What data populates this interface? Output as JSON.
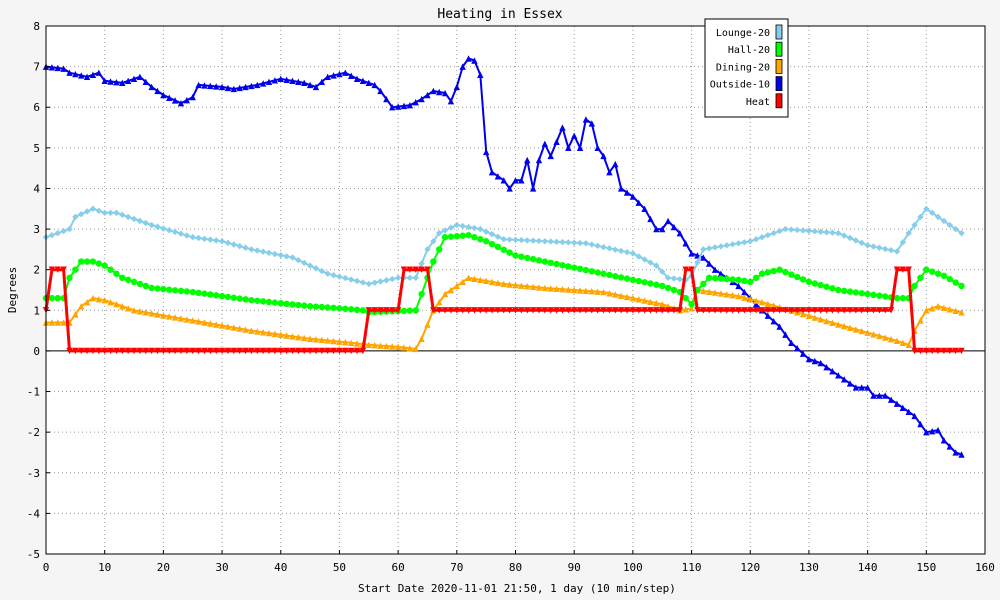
{
  "chart_data": {
    "type": "line",
    "title": "Heating in Essex",
    "xlabel": "Start Date 2020-11-01 21:50, 1 day (10 min/step)",
    "ylabel": "Degrees",
    "xlim": [
      0,
      160
    ],
    "ylim": [
      -5,
      8
    ],
    "xticks": [
      0,
      10,
      20,
      30,
      40,
      50,
      60,
      70,
      80,
      90,
      100,
      110,
      120,
      130,
      140,
      150,
      160
    ],
    "yticks": [
      -5,
      -4,
      -3,
      -2,
      -1,
      0,
      1,
      2,
      3,
      4,
      5,
      6,
      7,
      8
    ],
    "grid": true,
    "legend_position": "top-right",
    "series": [
      {
        "name": "Lounge-20",
        "color": "#87ceeb",
        "marker": "diamond",
        "points": [
          [
            0,
            2.8
          ],
          [
            4,
            3.0
          ],
          [
            5,
            3.3
          ],
          [
            8,
            3.5
          ],
          [
            10,
            3.4
          ],
          [
            12,
            3.4
          ],
          [
            18,
            3.1
          ],
          [
            25,
            2.8
          ],
          [
            30,
            2.7
          ],
          [
            35,
            2.5
          ],
          [
            42,
            2.3
          ],
          [
            48,
            1.9
          ],
          [
            55,
            1.65
          ],
          [
            60,
            1.8
          ],
          [
            63,
            1.8
          ],
          [
            65,
            2.5
          ],
          [
            67,
            2.9
          ],
          [
            70,
            3.1
          ],
          [
            74,
            3.0
          ],
          [
            78,
            2.75
          ],
          [
            85,
            2.7
          ],
          [
            92,
            2.65
          ],
          [
            100,
            2.4
          ],
          [
            104,
            2.1
          ],
          [
            106,
            1.8
          ],
          [
            109,
            1.75
          ],
          [
            110,
            1.85
          ],
          [
            112,
            2.5
          ],
          [
            120,
            2.7
          ],
          [
            126,
            3.0
          ],
          [
            135,
            2.9
          ],
          [
            140,
            2.6
          ],
          [
            145,
            2.45
          ],
          [
            147,
            2.9
          ],
          [
            150,
            3.5
          ],
          [
            152,
            3.3
          ],
          [
            156,
            2.9
          ]
        ]
      },
      {
        "name": "Hall-20",
        "color": "#00ff00",
        "marker": "circle",
        "points": [
          [
            0,
            1.3
          ],
          [
            3,
            1.3
          ],
          [
            4,
            1.8
          ],
          [
            6,
            2.2
          ],
          [
            8,
            2.2
          ],
          [
            10,
            2.1
          ],
          [
            13,
            1.8
          ],
          [
            18,
            1.55
          ],
          [
            25,
            1.45
          ],
          [
            35,
            1.25
          ],
          [
            45,
            1.1
          ],
          [
            50,
            1.05
          ],
          [
            54,
            1.0
          ],
          [
            55,
            0.95
          ],
          [
            63,
            1.0
          ],
          [
            64,
            1.4
          ],
          [
            66,
            2.2
          ],
          [
            68,
            2.8
          ],
          [
            72,
            2.85
          ],
          [
            75,
            2.7
          ],
          [
            80,
            2.35
          ],
          [
            90,
            2.05
          ],
          [
            100,
            1.75
          ],
          [
            105,
            1.6
          ],
          [
            108,
            1.45
          ],
          [
            110,
            1.15
          ],
          [
            111,
            1.5
          ],
          [
            113,
            1.8
          ],
          [
            118,
            1.75
          ],
          [
            120,
            1.7
          ],
          [
            122,
            1.9
          ],
          [
            125,
            2.0
          ],
          [
            130,
            1.7
          ],
          [
            135,
            1.5
          ],
          [
            140,
            1.4
          ],
          [
            145,
            1.3
          ],
          [
            147,
            1.3
          ],
          [
            148,
            1.6
          ],
          [
            150,
            2.0
          ],
          [
            153,
            1.85
          ],
          [
            156,
            1.6
          ]
        ]
      },
      {
        "name": "Dining-20",
        "color": "#ffa500",
        "marker": "triangle",
        "points": [
          [
            0,
            0.7
          ],
          [
            4,
            0.7
          ],
          [
            6,
            1.1
          ],
          [
            8,
            1.3
          ],
          [
            10,
            1.25
          ],
          [
            15,
            1.0
          ],
          [
            25,
            0.75
          ],
          [
            35,
            0.5
          ],
          [
            45,
            0.3
          ],
          [
            52,
            0.2
          ],
          [
            55,
            0.15
          ],
          [
            60,
            0.1
          ],
          [
            63,
            0.05
          ],
          [
            64,
            0.3
          ],
          [
            66,
            1.0
          ],
          [
            68,
            1.4
          ],
          [
            72,
            1.8
          ],
          [
            78,
            1.65
          ],
          [
            85,
            1.55
          ],
          [
            95,
            1.45
          ],
          [
            100,
            1.3
          ],
          [
            105,
            1.15
          ],
          [
            108,
            1.0
          ],
          [
            110,
            1.05
          ],
          [
            111,
            1.5
          ],
          [
            118,
            1.35
          ],
          [
            122,
            1.2
          ],
          [
            128,
            0.95
          ],
          [
            135,
            0.65
          ],
          [
            140,
            0.45
          ],
          [
            145,
            0.25
          ],
          [
            147,
            0.15
          ],
          [
            148,
            0.5
          ],
          [
            150,
            1.0
          ],
          [
            152,
            1.1
          ],
          [
            156,
            0.95
          ]
        ]
      },
      {
        "name": "Outside-10",
        "color": "#0000ee",
        "marker": "triangle",
        "points": [
          [
            0,
            7.0
          ],
          [
            3,
            6.95
          ],
          [
            4,
            6.85
          ],
          [
            7,
            6.75
          ],
          [
            9,
            6.85
          ],
          [
            10,
            6.65
          ],
          [
            13,
            6.6
          ],
          [
            16,
            6.75
          ],
          [
            18,
            6.5
          ],
          [
            20,
            6.3
          ],
          [
            23,
            6.1
          ],
          [
            25,
            6.25
          ],
          [
            26,
            6.55
          ],
          [
            30,
            6.5
          ],
          [
            32,
            6.45
          ],
          [
            36,
            6.55
          ],
          [
            40,
            6.7
          ],
          [
            44,
            6.6
          ],
          [
            46,
            6.5
          ],
          [
            48,
            6.75
          ],
          [
            51,
            6.85
          ],
          [
            53,
            6.7
          ],
          [
            56,
            6.55
          ],
          [
            57,
            6.4
          ],
          [
            59,
            6.0
          ],
          [
            62,
            6.05
          ],
          [
            64,
            6.2
          ],
          [
            66,
            6.4
          ],
          [
            68,
            6.35
          ],
          [
            69,
            6.15
          ],
          [
            70,
            6.5
          ],
          [
            71,
            7.0
          ],
          [
            72,
            7.2
          ],
          [
            73,
            7.15
          ],
          [
            74,
            6.8
          ],
          [
            75,
            4.9
          ],
          [
            76,
            4.4
          ],
          [
            78,
            4.2
          ],
          [
            79,
            4.0
          ],
          [
            80,
            4.2
          ],
          [
            81,
            4.2
          ],
          [
            82,
            4.7
          ],
          [
            83,
            4.0
          ],
          [
            84,
            4.7
          ],
          [
            85,
            5.1
          ],
          [
            86,
            4.8
          ],
          [
            88,
            5.5
          ],
          [
            89,
            5.0
          ],
          [
            90,
            5.3
          ],
          [
            91,
            5.0
          ],
          [
            92,
            5.7
          ],
          [
            93,
            5.6
          ],
          [
            94,
            5.0
          ],
          [
            95,
            4.8
          ],
          [
            96,
            4.4
          ],
          [
            97,
            4.6
          ],
          [
            98,
            4.0
          ],
          [
            100,
            3.8
          ],
          [
            102,
            3.5
          ],
          [
            104,
            3.0
          ],
          [
            105,
            3.0
          ],
          [
            106,
            3.2
          ],
          [
            108,
            2.9
          ],
          [
            110,
            2.4
          ],
          [
            112,
            2.3
          ],
          [
            114,
            2.0
          ],
          [
            116,
            1.8
          ],
          [
            118,
            1.6
          ],
          [
            120,
            1.3
          ],
          [
            122,
            1.0
          ],
          [
            125,
            0.6
          ],
          [
            127,
            0.2
          ],
          [
            130,
            -0.2
          ],
          [
            132,
            -0.3
          ],
          [
            134,
            -0.5
          ],
          [
            136,
            -0.7
          ],
          [
            138,
            -0.9
          ],
          [
            140,
            -0.9
          ],
          [
            141,
            -1.1
          ],
          [
            143,
            -1.1
          ],
          [
            145,
            -1.3
          ],
          [
            147,
            -1.5
          ],
          [
            148,
            -1.6
          ],
          [
            150,
            -2.0
          ],
          [
            152,
            -1.95
          ],
          [
            153,
            -2.2
          ],
          [
            155,
            -2.5
          ],
          [
            156,
            -2.55
          ]
        ]
      },
      {
        "name": "Heat",
        "color": "#ff0000",
        "marker": "triangle-down",
        "points": [
          [
            0,
            1.0
          ],
          [
            1,
            2.0
          ],
          [
            3,
            2.0
          ],
          [
            4,
            0.0
          ],
          [
            54,
            0.0
          ],
          [
            55,
            1.0
          ],
          [
            60,
            1.0
          ],
          [
            61,
            2.0
          ],
          [
            65,
            2.0
          ],
          [
            66,
            1.0
          ],
          [
            108,
            1.0
          ],
          [
            109,
            2.0
          ],
          [
            110,
            2.0
          ],
          [
            111,
            1.0
          ],
          [
            144,
            1.0
          ],
          [
            145,
            2.0
          ],
          [
            147,
            2.0
          ],
          [
            148,
            0.0
          ],
          [
            156,
            0.0
          ]
        ]
      }
    ]
  }
}
